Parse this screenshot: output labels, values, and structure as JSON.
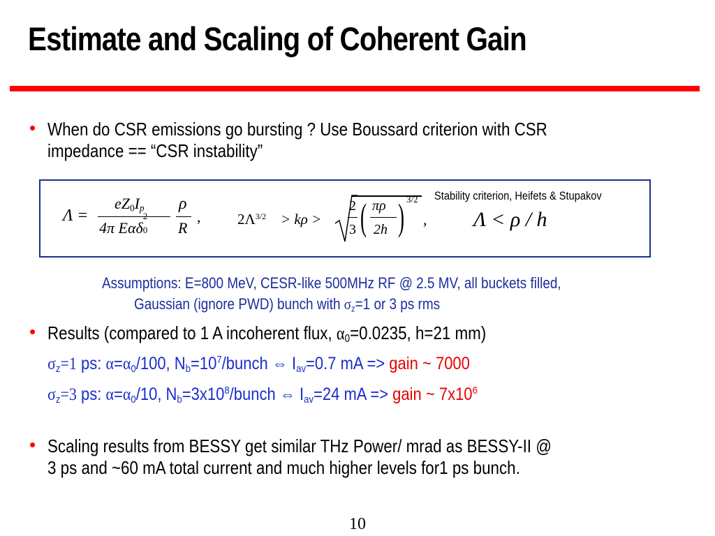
{
  "title": "Estimate and Scaling of Coherent Gain",
  "bullet1": {
    "line1": "When do CSR emissions  go bursting ? Use Boussard criterion with CSR",
    "line2_a": "impedance == ",
    "line2_b": "“CSR instability”"
  },
  "equations": {
    "stability_label": "Stability criterion, Heifets & Stupakov",
    "eq1_lhs": "Λ =",
    "eq1_num": "eZ",
    "eq1_num_sub": "0",
    "eq1_num_I": "I",
    "eq1_num_p": "p",
    "eq1_den": "4π Eαδ",
    "eq1_den_sup": "2",
    "eq1_den_sub": "0",
    "eq1_rho": "ρ",
    "eq1_R": "R",
    "comma": ",",
    "eq2_left": "2Λ",
    "eq2_sup": "3/2",
    "eq2_mid": "> kρ >",
    "eq2_frac_num": "2",
    "eq2_frac_den": "3",
    "eq2_paren_num": "πρ",
    "eq2_paren_den": "2h",
    "eq2_exp": "3/2",
    "eq3": "Λ < ρ / h"
  },
  "assumptions": {
    "line1": "Assumptions: E=800 MeV, CESR-like 500MHz RF @ 2.5 MV, all buckets filled,",
    "line2_a": "Gaussian (ignore PWD) bunch with ",
    "line2_sigma": "σ",
    "line2_sub": "z",
    "line2_b": "=1 or 3 ps rms"
  },
  "bullet2": {
    "text_a": "Results (compared to 1 A incoherent flux, ",
    "alpha": "α",
    "alpha_sub": "0",
    "text_b": "=0.0235, h=21 mm)"
  },
  "results": [
    {
      "sigma": "σ",
      "sigma_sub": "z",
      "eq_val": "=1",
      "ps": " ps: ",
      "alpha": "α",
      "eq": "=",
      "alpha0": "α",
      "alpha0_sub": "0",
      "ratio": "/100, N",
      "n_sub": "b",
      "n_val": "=10",
      "n_sup": "7",
      "per_bunch": "/bunch ",
      "arrow": "⇔",
      "i": " I",
      "i_sub": "av",
      "i_val": "=0.7 mA => ",
      "gain": "gain ~ 7000",
      "gain_sup": ""
    },
    {
      "sigma": "σ",
      "sigma_sub": "z",
      "eq_val": "=3",
      "ps": " ps: ",
      "alpha": "α",
      "eq": "=",
      "alpha0": "α",
      "alpha0_sub": "0",
      "ratio": "/10, N",
      "n_sub": "b",
      "n_val": "=3x10",
      "n_sup": "8",
      "per_bunch": "/bunch ",
      "arrow": "⇔",
      "i": " I",
      "i_sub": "av",
      "i_val": "=24 mA => ",
      "gain": "gain ~ 7x10",
      "gain_sup": "6"
    }
  ],
  "bullet3": {
    "line1": "Scaling results from BESSY get similar THz Power/ mrad as BESSY-II @",
    "line2": "3 ps and ~60 mA total current and much higher levels for1 ps bunch."
  },
  "bullet_glyph": "•",
  "page_number": "10",
  "colors": {
    "rule": "#ff0000",
    "box_border": "#1a2e8c",
    "assumptions": "#1a2e9c",
    "gain": "#e60000"
  }
}
